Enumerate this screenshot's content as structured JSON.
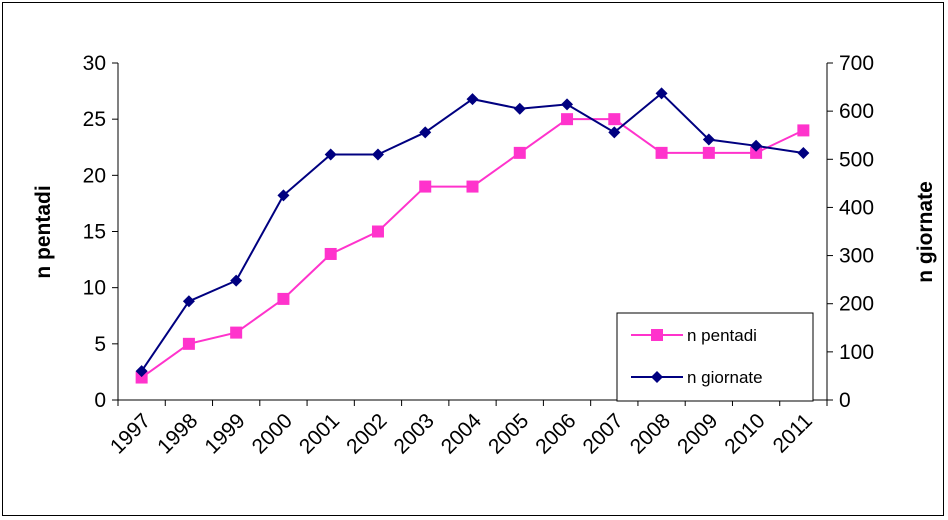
{
  "chart_data": {
    "type": "line",
    "categories": [
      "1997",
      "1998",
      "1999",
      "2000",
      "2001",
      "2002",
      "2003",
      "2004",
      "2005",
      "2006",
      "2007",
      "2008",
      "2009",
      "2010",
      "2011"
    ],
    "series": [
      {
        "name": "n pentadi",
        "axis": "left",
        "color": "#FF33CC",
        "marker": "square",
        "values": [
          2,
          5,
          6,
          9,
          13,
          15,
          19,
          19,
          22,
          25,
          25,
          22,
          22,
          22,
          24
        ]
      },
      {
        "name": "n giornate",
        "axis": "right",
        "color": "#000080",
        "marker": "diamond",
        "values": [
          60,
          205,
          248,
          425,
          510,
          510,
          556,
          625,
          605,
          614,
          556,
          637,
          541,
          528,
          513
        ]
      }
    ],
    "ylabel_left": "n pentadi",
    "ylabel_right": "n giornate",
    "ylim_left": [
      0,
      30
    ],
    "ylim_right": [
      0,
      700
    ],
    "yticks_left": [
      "0",
      "5",
      "10",
      "15",
      "20",
      "25",
      "30"
    ],
    "yticks_right": [
      "0",
      "100",
      "200",
      "300",
      "400",
      "500",
      "600",
      "700"
    ],
    "grid": false,
    "legend_position": "bottom-right"
  }
}
